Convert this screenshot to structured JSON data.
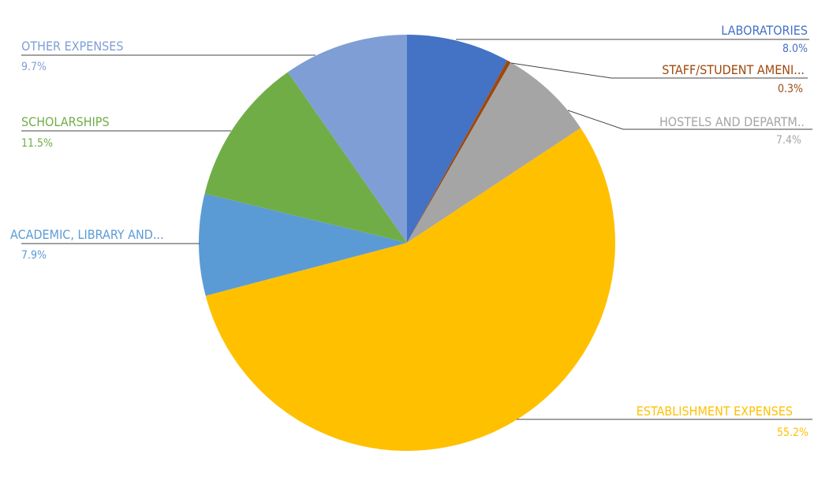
{
  "chart_data": {
    "type": "pie",
    "title": "",
    "start_angle_deg": 0,
    "direction": "clockwise",
    "slices": [
      {
        "label": "LABORATORIES",
        "value": 8.0,
        "display": "8.0%",
        "color": "#4472C4"
      },
      {
        "label": "STAFF/STUDENT AMENI...",
        "value": 0.3,
        "display": "0.3%",
        "color": "#9E480E"
      },
      {
        "label": "HOSTELS AND DEPARTM..",
        "value": 7.4,
        "display": "7.4%",
        "color": "#A5A5A5"
      },
      {
        "label": "ESTABLISHMENT EXPENSES",
        "value": 55.2,
        "display": "55.2%",
        "color": "#FFC000"
      },
      {
        "label": "ACADEMIC, LIBRARY AND...",
        "value": 7.9,
        "display": "7.9%",
        "color": "#5B9BD5"
      },
      {
        "label": "SCHOLARSHIPS",
        "value": 11.5,
        "display": "11.5%",
        "color": "#70AD47"
      },
      {
        "label": "OTHER EXPENSES",
        "value": 9.7,
        "display": "9.7%",
        "color": "#7F9ED6"
      }
    ],
    "legend": "none",
    "data_labels": "outside with leader lines"
  }
}
